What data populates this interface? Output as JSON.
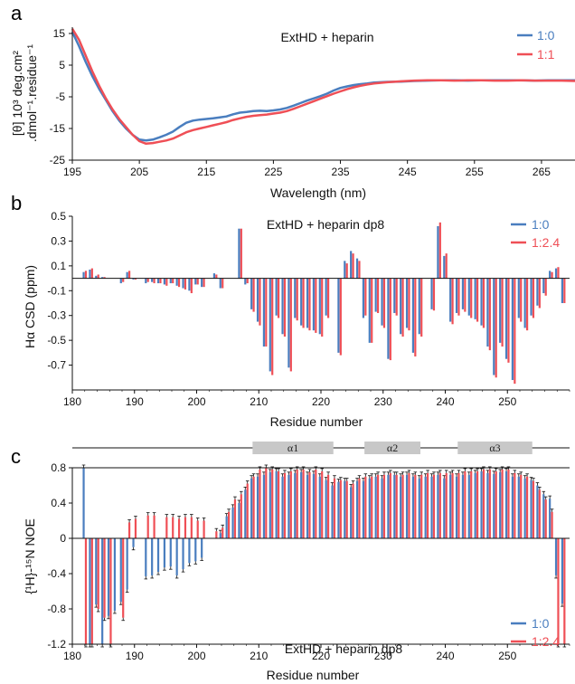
{
  "colors": {
    "blue": "#4a7ebf",
    "red": "#ef4f56",
    "axis": "#111111",
    "helix": "#c8c8c8"
  },
  "chart_data": [
    {
      "type": "line",
      "panel": "a",
      "title": "ExtHD + heparin",
      "xlabel": "Wavelength (nm)",
      "ylabel_line1": "[θ] 10³ deg.cm²",
      "ylabel_line2": ".dmol⁻¹.residue⁻¹",
      "xlim": [
        195,
        270
      ],
      "ylim": [
        -25,
        17
      ],
      "xticks": [
        195,
        205,
        215,
        225,
        235,
        245,
        255,
        265
      ],
      "yticks": [
        15,
        5,
        -5,
        -15,
        -25
      ],
      "legend": "top-right",
      "series": [
        {
          "name": "1:0",
          "color": "blue",
          "x": [
            195,
            196,
            197,
            198,
            199,
            200,
            201,
            202,
            203,
            204,
            205,
            206,
            207,
            208,
            209,
            210,
            211,
            212,
            213,
            214,
            215,
            216,
            217,
            218,
            219,
            220,
            221,
            222,
            223,
            224,
            225,
            226,
            227,
            228,
            229,
            230,
            231,
            232,
            233,
            234,
            235,
            236,
            237,
            238,
            239,
            240,
            242,
            244,
            246,
            248,
            250,
            252,
            254,
            256,
            258,
            260,
            262,
            264,
            266,
            268,
            270
          ],
          "y": [
            15.5,
            11,
            6,
            1.5,
            -2.5,
            -6,
            -9.5,
            -12.5,
            -15,
            -17,
            -18.5,
            -18.8,
            -18.5,
            -17.8,
            -17,
            -16,
            -14.5,
            -13.2,
            -12.5,
            -12.2,
            -12,
            -11.8,
            -11.5,
            -11.2,
            -10.5,
            -10,
            -9.8,
            -9.5,
            -9.4,
            -9.5,
            -9.3,
            -9,
            -8.5,
            -7.8,
            -7,
            -6.2,
            -5.5,
            -4.8,
            -4,
            -3,
            -2.2,
            -1.7,
            -1.3,
            -1,
            -0.8,
            -0.5,
            -0.3,
            -0.2,
            0,
            0.1,
            0.2,
            0.2,
            0.1,
            0.2,
            0.2,
            0.2,
            0.2,
            0.1,
            0.2,
            0.2,
            0.2
          ]
        },
        {
          "name": "1:1",
          "color": "red",
          "x": [
            195,
            196,
            197,
            198,
            199,
            200,
            201,
            202,
            203,
            204,
            205,
            206,
            207,
            208,
            209,
            210,
            211,
            212,
            213,
            214,
            215,
            216,
            217,
            218,
            219,
            220,
            221,
            222,
            223,
            224,
            225,
            226,
            227,
            228,
            229,
            230,
            231,
            232,
            233,
            234,
            235,
            236,
            237,
            238,
            239,
            240,
            242,
            244,
            246,
            248,
            250,
            252,
            254,
            256,
            258,
            260,
            262,
            264,
            266,
            268,
            270
          ],
          "y": [
            16.5,
            13,
            8,
            3,
            -1.5,
            -5.5,
            -9,
            -12,
            -14.5,
            -17,
            -19,
            -19.8,
            -19.6,
            -19.2,
            -18.8,
            -18.2,
            -17.2,
            -16.2,
            -15.5,
            -15,
            -14.5,
            -14,
            -13.5,
            -13,
            -12.3,
            -11.8,
            -11.3,
            -11,
            -10.8,
            -10.6,
            -10.3,
            -10,
            -9.5,
            -8.8,
            -8,
            -7.2,
            -6.4,
            -5.6,
            -4.8,
            -4,
            -3.3,
            -2.6,
            -2,
            -1.5,
            -1.1,
            -0.8,
            -0.4,
            -0.1,
            0.1,
            0.2,
            0.2,
            0.1,
            0.2,
            0.2,
            0.1,
            0.1,
            0.2,
            0.1,
            0.1,
            0.1,
            0
          ]
        }
      ]
    },
    {
      "type": "bar",
      "panel": "b",
      "title": "ExtHD + heparin dp8",
      "xlabel": "Residue number",
      "ylabel": "Hα CSD (ppm)",
      "xlim": [
        180,
        260
      ],
      "ylim": [
        -0.9,
        0.5
      ],
      "xticks": [
        180,
        190,
        200,
        210,
        220,
        230,
        240,
        250
      ],
      "yticks": [
        0.5,
        0.3,
        0.1,
        -0.1,
        -0.3,
        -0.5,
        -0.7
      ],
      "legend": "top-right",
      "x": [
        182,
        183,
        184,
        185,
        188,
        189,
        190,
        192,
        193,
        194,
        195,
        196,
        197,
        198,
        199,
        200,
        201,
        203,
        204,
        207,
        208,
        209,
        210,
        211,
        212,
        213,
        214,
        215,
        216,
        217,
        218,
        219,
        220,
        221,
        223,
        224,
        225,
        226,
        227,
        228,
        229,
        230,
        231,
        232,
        233,
        234,
        235,
        236,
        238,
        239,
        240,
        241,
        242,
        243,
        244,
        245,
        246,
        247,
        248,
        249,
        250,
        251,
        252,
        253,
        254,
        255,
        256,
        257,
        258,
        259
      ],
      "series": [
        {
          "name": "1:0",
          "color": "blue",
          "values": [
            0.05,
            0.07,
            0.02,
            0.01,
            -0.04,
            0.05,
            -0.01,
            -0.04,
            -0.03,
            -0.04,
            -0.05,
            -0.04,
            -0.06,
            -0.08,
            -0.1,
            -0.05,
            -0.07,
            0.04,
            -0.08,
            0.4,
            -0.05,
            -0.25,
            -0.35,
            -0.55,
            -0.75,
            -0.3,
            -0.45,
            -0.72,
            -0.32,
            -0.38,
            -0.4,
            -0.42,
            -0.45,
            -0.3,
            -0.6,
            0.14,
            0.22,
            0.16,
            -0.32,
            -0.52,
            -0.27,
            -0.38,
            -0.65,
            -0.28,
            -0.45,
            -0.4,
            -0.6,
            -0.45,
            -0.25,
            0.42,
            0.18,
            -0.35,
            -0.28,
            -0.25,
            -0.3,
            -0.33,
            -0.38,
            -0.55,
            -0.78,
            -0.52,
            -0.65,
            -0.82,
            -0.32,
            -0.4,
            -0.3,
            -0.22,
            -0.12,
            0.06,
            0.08,
            -0.2
          ]
        },
        {
          "name": "1:2.4",
          "color": "red",
          "values": [
            0.06,
            0.08,
            0.03,
            0.01,
            -0.03,
            0.06,
            -0.01,
            -0.03,
            -0.04,
            -0.04,
            -0.06,
            -0.04,
            -0.07,
            -0.09,
            -0.12,
            -0.05,
            -0.07,
            0.03,
            -0.08,
            0.4,
            -0.04,
            -0.27,
            -0.38,
            -0.55,
            -0.78,
            -0.32,
            -0.47,
            -0.75,
            -0.34,
            -0.4,
            -0.42,
            -0.44,
            -0.47,
            -0.32,
            -0.62,
            0.12,
            0.2,
            0.14,
            -0.3,
            -0.52,
            -0.28,
            -0.4,
            -0.66,
            -0.3,
            -0.47,
            -0.42,
            -0.63,
            -0.47,
            -0.26,
            0.45,
            0.2,
            -0.37,
            -0.3,
            -0.27,
            -0.32,
            -0.35,
            -0.4,
            -0.58,
            -0.8,
            -0.55,
            -0.68,
            -0.85,
            -0.35,
            -0.42,
            -0.32,
            -0.24,
            -0.14,
            0.05,
            0.09,
            -0.2
          ]
        }
      ],
      "legend_labels": [
        "1:0",
        "1:2.4"
      ]
    },
    {
      "type": "bar",
      "panel": "c",
      "title": "ExtHD + heparin dp8",
      "xlabel": "Residue number",
      "ylabel": "{¹H}-¹⁵N NOE",
      "xlim": [
        180,
        260
      ],
      "ylim": [
        -1.2,
        0.8
      ],
      "xticks": [
        180,
        190,
        200,
        210,
        220,
        230,
        240,
        250
      ],
      "yticks": [
        0.8,
        0.4,
        0,
        -0.4,
        -0.8,
        -1.2
      ],
      "legend": "bottom-right",
      "helices": [
        {
          "label": "α1",
          "start": 209,
          "end": 222
        },
        {
          "label": "α2",
          "start": 227,
          "end": 236
        },
        {
          "label": "α3",
          "start": 242,
          "end": 254
        }
      ],
      "x": [
        181,
        182,
        183,
        184,
        185,
        186,
        187,
        188,
        189,
        190,
        192,
        193,
        194,
        195,
        196,
        197,
        198,
        199,
        200,
        201,
        203,
        204,
        205,
        206,
        207,
        208,
        209,
        210,
        211,
        212,
        213,
        214,
        215,
        216,
        217,
        218,
        219,
        220,
        221,
        222,
        223,
        224,
        225,
        226,
        227,
        228,
        229,
        230,
        231,
        232,
        233,
        234,
        235,
        236,
        237,
        238,
        239,
        240,
        241,
        242,
        243,
        244,
        245,
        246,
        247,
        248,
        249,
        250,
        251,
        252,
        253,
        254,
        255,
        256,
        257,
        258,
        259
      ],
      "series": [
        {
          "name": "1:0",
          "color": "blue",
          "values": [
            0,
            0.85,
            -1.2,
            -0.75,
            -1.2,
            -0.88,
            -0.82,
            -0.72,
            -0.58,
            -0.1,
            -0.43,
            -0.42,
            -0.38,
            -0.33,
            -0.32,
            -0.42,
            -0.35,
            -0.28,
            -0.26,
            -0.22,
            0,
            0.06,
            0.25,
            0.35,
            0.4,
            0.55,
            0.68,
            0.7,
            0.72,
            0.75,
            0.76,
            0.7,
            0.72,
            0.74,
            0.75,
            0.72,
            0.73,
            0.7,
            0.66,
            0.6,
            0.64,
            0.65,
            0.58,
            0.65,
            0.65,
            0.68,
            0.7,
            0.68,
            0.72,
            0.72,
            0.7,
            0.72,
            0.7,
            0.68,
            0.7,
            0.7,
            0.72,
            0.68,
            0.72,
            0.7,
            0.72,
            0.72,
            0.74,
            0.76,
            0.74,
            0.73,
            0.75,
            0.76,
            0.7,
            0.7,
            0.68,
            0.66,
            0.6,
            0.5,
            0.45,
            -0.42,
            -0.74
          ]
        },
        {
          "name": "1:2.4",
          "color": "red",
          "values": [
            0,
            -1.2,
            -1.2,
            -0.8,
            -0.9,
            -1.2,
            0,
            -0.9,
            0.18,
            0.22,
            0.26,
            0.26,
            0.0,
            0.24,
            0.24,
            0.22,
            0.24,
            0.24,
            0.2,
            0.2,
            0.08,
            0.12,
            0.3,
            0.44,
            0.5,
            0.62,
            0.7,
            0.78,
            0.8,
            0.78,
            0.76,
            0.74,
            0.76,
            0.78,
            0.78,
            0.75,
            0.78,
            0.76,
            0.72,
            0.68,
            0.66,
            0.65,
            0.62,
            0.68,
            0.7,
            0.7,
            0.72,
            0.72,
            0.74,
            0.72,
            0.72,
            0.74,
            0.72,
            0.72,
            0.74,
            0.72,
            0.74,
            0.74,
            0.74,
            0.74,
            0.76,
            0.76,
            0.76,
            0.78,
            0.78,
            0.76,
            0.78,
            0.78,
            0.74,
            0.72,
            0.7,
            0.65,
            0.55,
            0.44,
            0.3,
            -1.2,
            -1.2
          ]
        }
      ],
      "legend_labels": [
        "1:0",
        "1:2.4"
      ]
    }
  ],
  "panel_labels": [
    "a",
    "b",
    "c"
  ]
}
